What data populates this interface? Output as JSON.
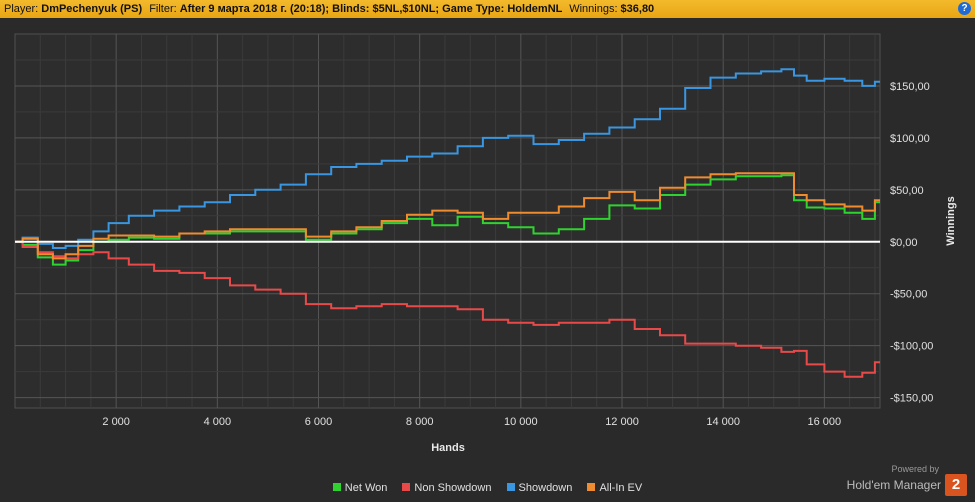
{
  "header": {
    "player_label": "Player:",
    "player_value": "DmPechenyuk (PS)",
    "filter_label": "Filter:",
    "filter_value": "After 9 марта 2018 г. (20:18); Blinds: $5NL,$10NL; Game Type: HoldemNL",
    "winnings_label": "Winnings:",
    "winnings_value": "$36,80",
    "help_icon": "?"
  },
  "chart_data": {
    "type": "line",
    "xlabel": "Hands",
    "ylabel": "Winnings",
    "xlim": [
      0,
      17100
    ],
    "ylim": [
      -160,
      200
    ],
    "x_ticks": [
      2000,
      4000,
      6000,
      8000,
      10000,
      12000,
      14000,
      16000
    ],
    "x_tick_labels": [
      "2 000",
      "4 000",
      "6 000",
      "8 000",
      "10 000",
      "12 000",
      "14 000",
      "16 000"
    ],
    "y_ticks": [
      150,
      100,
      50,
      0,
      -50,
      -100,
      -150
    ],
    "y_tick_labels": [
      "$150,00",
      "$100,00",
      "$50,00",
      "$0,00",
      "-$50,00",
      "-$100,00",
      "-$150,00"
    ],
    "grid": true,
    "legend": "bottom",
    "series": [
      {
        "name": "Net Won",
        "color": "#2fd32f",
        "x": [
          0,
          300,
          600,
          900,
          1100,
          1400,
          1700,
          2000,
          2500,
          3000,
          3500,
          4000,
          4500,
          5000,
          5500,
          6000,
          6500,
          7000,
          7500,
          8000,
          8500,
          9000,
          9500,
          10000,
          10500,
          11000,
          11500,
          12000,
          12500,
          13000,
          13500,
          14000,
          14500,
          15000,
          15300,
          15500,
          15800,
          16200,
          16600,
          16900,
          17100
        ],
        "values": [
          0,
          -3,
          -15,
          -22,
          -18,
          -8,
          0,
          2,
          4,
          3,
          8,
          8,
          10,
          10,
          10,
          2,
          8,
          12,
          18,
          22,
          16,
          24,
          18,
          14,
          8,
          12,
          22,
          35,
          32,
          45,
          55,
          60,
          63,
          63,
          64,
          40,
          33,
          32,
          28,
          22,
          38
        ]
      },
      {
        "name": "Non Showdown",
        "color": "#e84a4a",
        "x": [
          0,
          300,
          600,
          900,
          1100,
          1400,
          1700,
          2000,
          2500,
          3000,
          3500,
          4000,
          4500,
          5000,
          5500,
          6000,
          6500,
          7000,
          7500,
          8000,
          8500,
          9000,
          9500,
          10000,
          10500,
          11000,
          11500,
          12000,
          12500,
          13000,
          13500,
          14000,
          14500,
          15000,
          15300,
          15500,
          15800,
          16200,
          16600,
          16900,
          17100
        ],
        "values": [
          0,
          -5,
          -10,
          -14,
          -16,
          -12,
          -10,
          -16,
          -22,
          -28,
          -30,
          -35,
          -42,
          -46,
          -50,
          -60,
          -64,
          -62,
          -60,
          -62,
          -62,
          -65,
          -75,
          -78,
          -80,
          -78,
          -78,
          -75,
          -84,
          -90,
          -98,
          -98,
          -100,
          -102,
          -106,
          -105,
          -118,
          -125,
          -130,
          -126,
          -116
        ]
      },
      {
        "name": "Showdown",
        "color": "#3a96e0",
        "x": [
          0,
          300,
          600,
          900,
          1100,
          1400,
          1700,
          2000,
          2500,
          3000,
          3500,
          4000,
          4500,
          5000,
          5500,
          6000,
          6500,
          7000,
          7500,
          8000,
          8500,
          9000,
          9500,
          10000,
          10500,
          11000,
          11500,
          12000,
          12500,
          13000,
          13500,
          14000,
          14500,
          15000,
          15300,
          15500,
          15800,
          16200,
          16600,
          16900,
          17100
        ],
        "values": [
          0,
          4,
          -2,
          -6,
          -4,
          2,
          10,
          18,
          25,
          30,
          34,
          38,
          45,
          50,
          55,
          65,
          72,
          75,
          78,
          82,
          85,
          92,
          100,
          102,
          94,
          98,
          104,
          110,
          118,
          128,
          148,
          158,
          162,
          164,
          166,
          160,
          155,
          157,
          155,
          150,
          154
        ]
      },
      {
        "name": "All-In EV",
        "color": "#f08c30",
        "x": [
          0,
          300,
          600,
          900,
          1100,
          1400,
          1700,
          2000,
          2500,
          3000,
          3500,
          4000,
          4500,
          5000,
          5500,
          6000,
          6500,
          7000,
          7500,
          8000,
          8500,
          9000,
          9500,
          10000,
          10500,
          11000,
          11500,
          12000,
          12500,
          13000,
          13500,
          14000,
          14500,
          15000,
          15300,
          15500,
          15800,
          16200,
          16600,
          16900,
          17100
        ],
        "values": [
          0,
          3,
          -12,
          -16,
          -12,
          -4,
          3,
          6,
          6,
          5,
          8,
          10,
          12,
          12,
          12,
          5,
          10,
          14,
          20,
          26,
          30,
          28,
          22,
          28,
          28,
          34,
          42,
          48,
          40,
          52,
          62,
          65,
          66,
          66,
          66,
          45,
          40,
          36,
          34,
          30,
          40
        ]
      }
    ]
  },
  "legend": {
    "net_won": "Net Won",
    "non_showdown": "Non Showdown",
    "showdown": "Showdown",
    "all_in_ev": "All-In EV"
  },
  "branding": {
    "powered": "Powered by",
    "name": "Hold'em Manager",
    "logo": "2"
  }
}
